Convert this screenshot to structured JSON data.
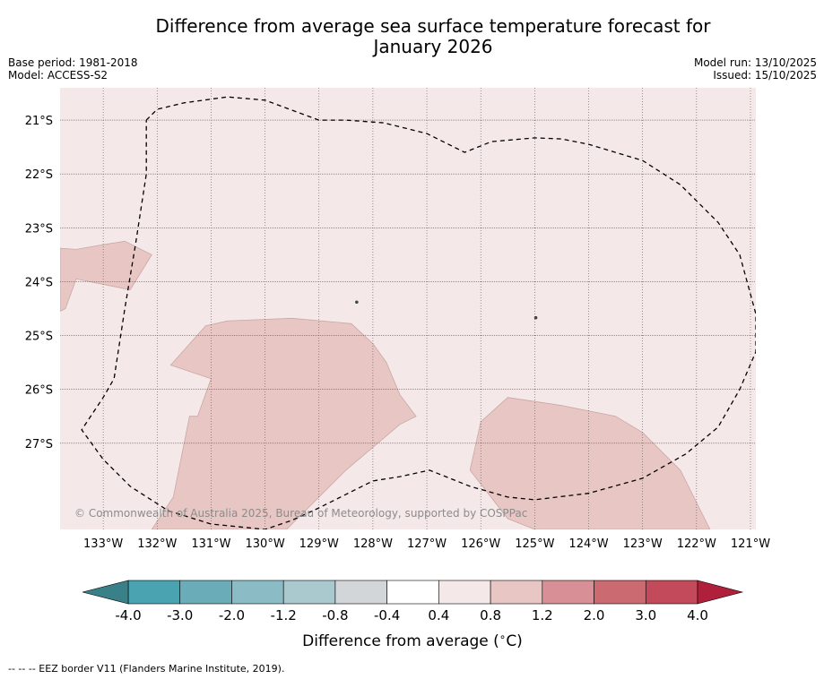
{
  "header": {
    "title_line1": "Difference from average sea surface temperature forecast for",
    "title_line2": "January 2026",
    "base_period": "Base period: 1981-2018",
    "model": "Model: ACCESS-S2",
    "model_run": "Model run: 13/10/2025",
    "issued": "Issued: 15/10/2025"
  },
  "copyright": "© Commonwealth of Australia 2025, Bureau of Meteorology, supported by COSPPac",
  "footnote": "-- -- -- EEZ border V11 (Flanders Marine Institute, 2019).",
  "chart_data": {
    "type": "heatmap",
    "title": "Difference from average sea surface temperature forecast for January 2026",
    "x_axis": {
      "range": [
        -133.8,
        -120.9
      ],
      "ticks": [
        -133,
        -132,
        -131,
        -130,
        -129,
        -128,
        -127,
        -126,
        -125,
        -124,
        -123,
        -122,
        -121
      ],
      "tick_labels": [
        "133°W",
        "132°W",
        "131°W",
        "130°W",
        "129°W",
        "128°W",
        "127°W",
        "126°W",
        "125°W",
        "124°W",
        "123°W",
        "122°W",
        "121°W"
      ]
    },
    "y_axis": {
      "range": [
        -28.6,
        -20.4
      ],
      "ticks": [
        -21,
        -22,
        -23,
        -24,
        -25,
        -26,
        -27
      ],
      "tick_labels": [
        "21°S",
        "22°S",
        "23°S",
        "24°S",
        "25°S",
        "26°S",
        "27°S"
      ]
    },
    "background_category": "0.4 to 0.8",
    "regions": [
      {
        "category": "0.8 to 1.2",
        "lonlat": [
          [
            -133.8,
            -23.38
          ],
          [
            -133.5,
            -23.4
          ],
          [
            -133.05,
            -23.32
          ],
          [
            -132.6,
            -23.25
          ],
          [
            -132.1,
            -23.5
          ],
          [
            -132.5,
            -24.15
          ],
          [
            -133.5,
            -23.95
          ],
          [
            -133.7,
            -24.5
          ],
          [
            -133.8,
            -24.55
          ]
        ]
      },
      {
        "category": "0.8 to 1.2",
        "lonlat": [
          [
            -131.75,
            -25.55
          ],
          [
            -131.1,
            -24.82
          ],
          [
            -130.7,
            -24.73
          ],
          [
            -129.5,
            -24.68
          ],
          [
            -128.4,
            -24.78
          ],
          [
            -128.0,
            -25.15
          ],
          [
            -127.75,
            -25.5
          ],
          [
            -127.5,
            -26.1
          ],
          [
            -127.2,
            -26.5
          ],
          [
            -127.5,
            -26.65
          ],
          [
            -128.5,
            -27.5
          ],
          [
            -129.5,
            -28.5
          ],
          [
            -129.6,
            -28.6
          ],
          [
            -132.1,
            -28.6
          ],
          [
            -131.7,
            -28.0
          ],
          [
            -131.4,
            -26.5
          ],
          [
            -131.25,
            -26.5
          ],
          [
            -131.0,
            -25.8
          ]
        ]
      },
      {
        "category": "0.8 to 1.2",
        "lonlat": [
          [
            -125.5,
            -26.15
          ],
          [
            -124.5,
            -26.3
          ],
          [
            -123.5,
            -26.5
          ],
          [
            -123.0,
            -26.8
          ],
          [
            -122.3,
            -27.5
          ],
          [
            -121.8,
            -28.5
          ],
          [
            -121.75,
            -28.6
          ],
          [
            -125.0,
            -28.6
          ],
          [
            -125.5,
            -28.4
          ],
          [
            -126.2,
            -27.5
          ],
          [
            -126.0,
            -26.6
          ]
        ]
      }
    ],
    "eez_border": [
      [
        -132.2,
        -21.0
      ],
      [
        -132.0,
        -20.8
      ],
      [
        -131.5,
        -20.68
      ],
      [
        -130.7,
        -20.57
      ],
      [
        -130.0,
        -20.63
      ],
      [
        -129.0,
        -21.0
      ],
      [
        -128.5,
        -21.0
      ],
      [
        -127.8,
        -21.05
      ],
      [
        -127.0,
        -21.25
      ],
      [
        -126.3,
        -21.6
      ],
      [
        -125.8,
        -21.4
      ],
      [
        -125.0,
        -21.33
      ],
      [
        -124.5,
        -21.35
      ],
      [
        -124.0,
        -21.45
      ],
      [
        -123.0,
        -21.75
      ],
      [
        -122.3,
        -22.2
      ],
      [
        -121.6,
        -22.9
      ],
      [
        -121.2,
        -23.5
      ],
      [
        -120.9,
        -24.6
      ],
      [
        -120.9,
        -25.3
      ],
      [
        -121.2,
        -26.0
      ],
      [
        -121.6,
        -26.7
      ],
      [
        -122.2,
        -27.2
      ],
      [
        -123.0,
        -27.65
      ],
      [
        -124.0,
        -27.93
      ],
      [
        -125.0,
        -28.05
      ],
      [
        -125.5,
        -28.0
      ],
      [
        -126.2,
        -27.8
      ],
      [
        -126.95,
        -27.5
      ],
      [
        -127.5,
        -27.62
      ],
      [
        -128.0,
        -27.7
      ],
      [
        -128.5,
        -27.95
      ],
      [
        -129.0,
        -28.2
      ],
      [
        -129.5,
        -28.43
      ],
      [
        -130.0,
        -28.6
      ],
      [
        -131.0,
        -28.5
      ],
      [
        -131.8,
        -28.25
      ],
      [
        -132.5,
        -27.8
      ],
      [
        -133.0,
        -27.3
      ],
      [
        -133.4,
        -26.75
      ],
      [
        -133.0,
        -26.15
      ],
      [
        -132.8,
        -25.8
      ],
      [
        -132.6,
        -24.5
      ],
      [
        -132.4,
        -23.3
      ],
      [
        -132.2,
        -22.0
      ],
      [
        -132.2,
        -21.0
      ]
    ],
    "islands": [
      [
        -128.3,
        -24.38
      ],
      [
        -124.98,
        -24.67
      ]
    ],
    "colorbar": {
      "label": "Difference from average ($^\\circ$C)",
      "label_text": "Difference from average (",
      "label_degree": "∘",
      "label_unit": "C)",
      "extend": "both",
      "boundaries": [
        -4.0,
        -3.0,
        -2.0,
        -1.2,
        -0.8,
        -0.4,
        0.4,
        0.8,
        1.2,
        2.0,
        3.0,
        4.0
      ],
      "tick_labels": [
        "-4.0",
        "-3.0",
        "-2.0",
        "-1.2",
        "-0.8",
        "-0.4",
        "0.4",
        "0.8",
        "1.2",
        "2.0",
        "3.0",
        "4.0"
      ],
      "colors": [
        "#4aa3b0",
        "#6aadb9",
        "#8bbcc5",
        "#a9c9ce",
        "#d3d6d8",
        "#ffffff",
        "#f5e8e8",
        "#e8c6c3",
        "#d88f95",
        "#cc6a72",
        "#c24a5a"
      ],
      "under_color": "#3a8088",
      "over_color": "#b0203a"
    },
    "palette": {
      "background": "#f5e8e8",
      "warm_region": "#e8c6c3",
      "region_edge": "#c8a8a5"
    }
  }
}
